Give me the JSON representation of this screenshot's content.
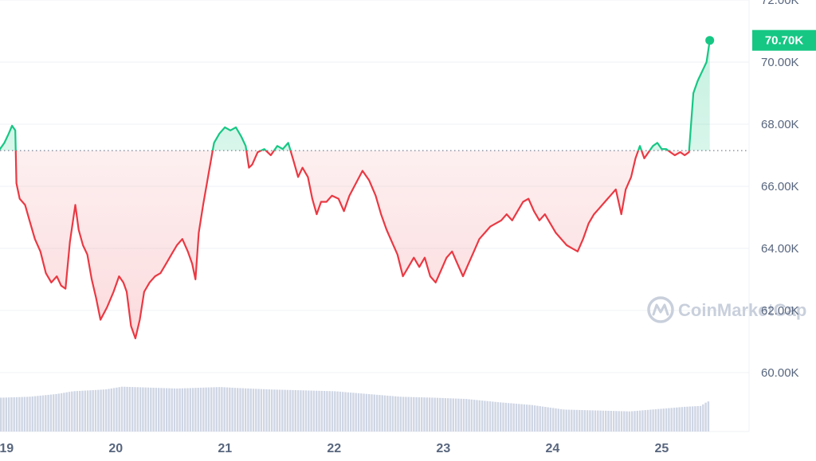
{
  "colors": {
    "up": "#16c784",
    "down": "#ea3943",
    "grid": "#eff2f5",
    "volume": "#cfd6e4",
    "axis_text": "#58667e",
    "baseline": "#58667e"
  },
  "watermark": {
    "text": "CoinMarketCap",
    "icon": "coinmarketcap-logo-icon"
  },
  "chart_data": {
    "type": "line",
    "title": "",
    "xlabel": "",
    "ylabel": "",
    "x_ticks": [
      "19",
      "20",
      "21",
      "22",
      "23",
      "24",
      "25"
    ],
    "x_domain": [
      18.94,
      25.8
    ],
    "y_ticks": [
      "60.00K",
      "62.00K",
      "64.00K",
      "66.00K",
      "68.00K",
      "70.00K",
      "72.00K"
    ],
    "y_tick_values": [
      60000,
      62000,
      64000,
      66000,
      68000,
      70000,
      72000
    ],
    "ylim": [
      58100,
      72000
    ],
    "baseline": 67150,
    "current_label": "70.70K",
    "current_value": 70700,
    "grid": true,
    "price": [
      [
        18.94,
        67200
      ],
      [
        18.98,
        67400
      ],
      [
        19.02,
        67700
      ],
      [
        19.05,
        67950
      ],
      [
        19.08,
        67800
      ],
      [
        19.09,
        66100
      ],
      [
        19.12,
        65600
      ],
      [
        19.17,
        65400
      ],
      [
        19.21,
        64900
      ],
      [
        19.26,
        64300
      ],
      [
        19.31,
        63900
      ],
      [
        19.36,
        63200
      ],
      [
        19.41,
        62900
      ],
      [
        19.46,
        63100
      ],
      [
        19.5,
        62800
      ],
      [
        19.54,
        62700
      ],
      [
        19.58,
        64200
      ],
      [
        19.63,
        65400
      ],
      [
        19.66,
        64600
      ],
      [
        19.7,
        64100
      ],
      [
        19.74,
        63800
      ],
      [
        19.78,
        63000
      ],
      [
        19.82,
        62400
      ],
      [
        19.86,
        61700
      ],
      [
        19.92,
        62100
      ],
      [
        19.98,
        62600
      ],
      [
        20.03,
        63100
      ],
      [
        20.07,
        62900
      ],
      [
        20.1,
        62600
      ],
      [
        20.14,
        61500
      ],
      [
        20.18,
        61100
      ],
      [
        20.22,
        61700
      ],
      [
        20.26,
        62600
      ],
      [
        20.31,
        62900
      ],
      [
        20.36,
        63100
      ],
      [
        20.41,
        63200
      ],
      [
        20.46,
        63500
      ],
      [
        20.51,
        63800
      ],
      [
        20.56,
        64100
      ],
      [
        20.61,
        64300
      ],
      [
        20.66,
        63900
      ],
      [
        20.7,
        63500
      ],
      [
        20.73,
        63000
      ],
      [
        20.76,
        64500
      ],
      [
        20.8,
        65400
      ],
      [
        20.85,
        66400
      ],
      [
        20.9,
        67400
      ],
      [
        20.95,
        67700
      ],
      [
        21.0,
        67900
      ],
      [
        21.05,
        67800
      ],
      [
        21.1,
        67900
      ],
      [
        21.15,
        67600
      ],
      [
        21.19,
        67300
      ],
      [
        21.22,
        66600
      ],
      [
        21.25,
        66700
      ],
      [
        21.3,
        67100
      ],
      [
        21.36,
        67200
      ],
      [
        21.42,
        67000
      ],
      [
        21.48,
        67300
      ],
      [
        21.53,
        67200
      ],
      [
        21.58,
        67400
      ],
      [
        21.63,
        66800
      ],
      [
        21.67,
        66300
      ],
      [
        21.71,
        66600
      ],
      [
        21.76,
        66300
      ],
      [
        21.8,
        65600
      ],
      [
        21.84,
        65100
      ],
      [
        21.88,
        65500
      ],
      [
        21.93,
        65500
      ],
      [
        21.98,
        65700
      ],
      [
        22.04,
        65600
      ],
      [
        22.09,
        65200
      ],
      [
        22.14,
        65700
      ],
      [
        22.2,
        66100
      ],
      [
        22.26,
        66500
      ],
      [
        22.32,
        66200
      ],
      [
        22.38,
        65700
      ],
      [
        22.43,
        65100
      ],
      [
        22.48,
        64600
      ],
      [
        22.53,
        64200
      ],
      [
        22.58,
        63800
      ],
      [
        22.63,
        63100
      ],
      [
        22.68,
        63400
      ],
      [
        22.73,
        63700
      ],
      [
        22.78,
        63400
      ],
      [
        22.83,
        63700
      ],
      [
        22.88,
        63100
      ],
      [
        22.93,
        62900
      ],
      [
        22.98,
        63300
      ],
      [
        23.03,
        63700
      ],
      [
        23.08,
        63900
      ],
      [
        23.13,
        63500
      ],
      [
        23.18,
        63100
      ],
      [
        23.23,
        63500
      ],
      [
        23.28,
        63900
      ],
      [
        23.33,
        64300
      ],
      [
        23.38,
        64500
      ],
      [
        23.43,
        64700
      ],
      [
        23.48,
        64800
      ],
      [
        23.53,
        64900
      ],
      [
        23.58,
        65100
      ],
      [
        23.63,
        64900
      ],
      [
        23.68,
        65200
      ],
      [
        23.73,
        65500
      ],
      [
        23.78,
        65600
      ],
      [
        23.83,
        65200
      ],
      [
        23.88,
        64900
      ],
      [
        23.93,
        65100
      ],
      [
        23.98,
        64800
      ],
      [
        24.03,
        64500
      ],
      [
        24.08,
        64300
      ],
      [
        24.13,
        64100
      ],
      [
        24.18,
        64000
      ],
      [
        24.23,
        63900
      ],
      [
        24.28,
        64300
      ],
      [
        24.33,
        64800
      ],
      [
        24.38,
        65100
      ],
      [
        24.43,
        65300
      ],
      [
        24.48,
        65500
      ],
      [
        24.53,
        65700
      ],
      [
        24.58,
        65900
      ],
      [
        24.63,
        65100
      ],
      [
        24.67,
        65900
      ],
      [
        24.72,
        66300
      ],
      [
        24.76,
        66900
      ],
      [
        24.8,
        67300
      ],
      [
        24.84,
        66900
      ],
      [
        24.88,
        67100
      ],
      [
        24.92,
        67300
      ],
      [
        24.96,
        67400
      ],
      [
        25.0,
        67200
      ],
      [
        25.04,
        67200
      ],
      [
        25.08,
        67100
      ],
      [
        25.12,
        67000
      ],
      [
        25.17,
        67100
      ],
      [
        25.21,
        67000
      ],
      [
        25.25,
        67100
      ],
      [
        25.29,
        69000
      ],
      [
        25.33,
        69400
      ],
      [
        25.37,
        69700
      ],
      [
        25.41,
        70000
      ],
      [
        25.44,
        70700
      ]
    ],
    "volume": [
      [
        18.94,
        18.5
      ],
      [
        19.2,
        19.0
      ],
      [
        19.45,
        20.5
      ],
      [
        19.6,
        22.0
      ],
      [
        19.9,
        23.0
      ],
      [
        20.05,
        24.5
      ],
      [
        20.3,
        24.0
      ],
      [
        20.55,
        23.5
      ],
      [
        20.8,
        24.0
      ],
      [
        20.95,
        24.3
      ],
      [
        21.1,
        23.8
      ],
      [
        21.4,
        23.0
      ],
      [
        21.7,
        22.5
      ],
      [
        22.0,
        22.0
      ],
      [
        22.3,
        20.5
      ],
      [
        22.6,
        19.0
      ],
      [
        22.9,
        18.5
      ],
      [
        23.2,
        17.8
      ],
      [
        23.5,
        16.0
      ],
      [
        23.8,
        14.5
      ],
      [
        24.1,
        12.0
      ],
      [
        24.4,
        11.5
      ],
      [
        24.7,
        11.0
      ],
      [
        25.0,
        12.5
      ],
      [
        25.2,
        13.5
      ],
      [
        25.35,
        14.0
      ],
      [
        25.4,
        16.0
      ],
      [
        25.44,
        17.0
      ]
    ]
  }
}
